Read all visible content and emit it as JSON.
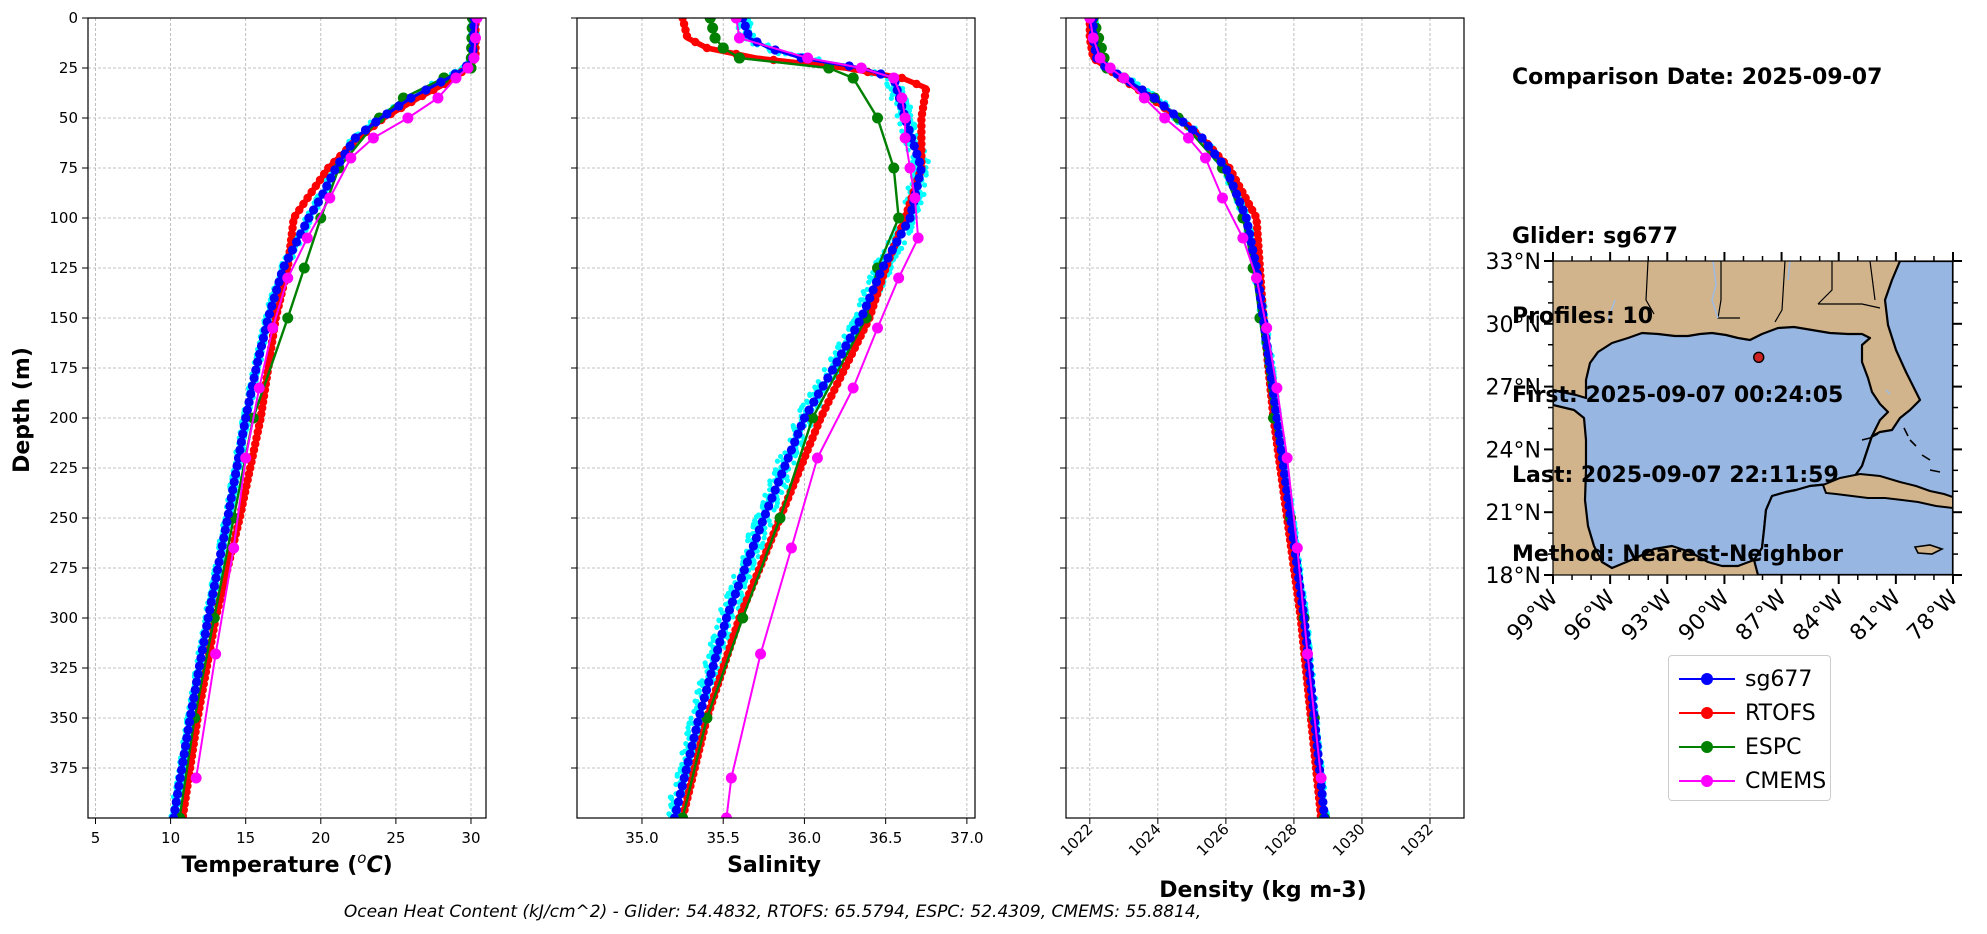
{
  "info": {
    "comparison_date": "Comparison Date: 2025-09-07",
    "glider": "Glider: sg677",
    "profiles": "Profiles: 10",
    "first": "First: 2025-09-07 00:24:05",
    "last": "Last: 2025-09-07 22:11:59",
    "method": "Method: Nearest-Neighbor"
  },
  "footer": "Ocean Heat Content (kJ/cm^2) - Glider: 54.4832,  RTOFS: 65.5794,  ESPC: 52.4309,  CMEMS: 55.8814,",
  "colors": {
    "sg677": "#0000ff",
    "RTOFS": "#ff0000",
    "ESPC": "#008000",
    "CMEMS": "#ff00ff",
    "glider_raw": "#00ffff",
    "land": "#d2b48c",
    "ocean": "#97b6e1",
    "grid": "#b0b0b0"
  },
  "legend": [
    {
      "name": "sg677",
      "color": "#0000ff"
    },
    {
      "name": "RTOFS",
      "color": "#ff0000"
    },
    {
      "name": "ESPC",
      "color": "#008000"
    },
    {
      "name": "CMEMS",
      "color": "#ff00ff"
    }
  ],
  "chart_data": [
    {
      "type": "line",
      "xlabel": "Temperature (°C)",
      "ylabel": "Depth (m)",
      "xlim": [
        4.5,
        31
      ],
      "ylim": [
        400,
        0
      ],
      "xticks": [
        5,
        10,
        15,
        20,
        25,
        30
      ],
      "yticks": [
        0,
        25,
        50,
        75,
        100,
        125,
        150,
        175,
        200,
        225,
        250,
        275,
        300,
        325,
        350,
        375
      ],
      "grid": true,
      "series": [
        {
          "name": "sg677",
          "depth": [
            0,
            10,
            20,
            25,
            30,
            40,
            50,
            60,
            75,
            90,
            100,
            125,
            150,
            175,
            200,
            250,
            300,
            350,
            400
          ],
          "values": [
            30.2,
            30.2,
            30.1,
            29.6,
            28.5,
            26.0,
            24.0,
            22.3,
            21.0,
            20.0,
            19.2,
            17.5,
            16.5,
            15.7,
            15.0,
            13.8,
            12.5,
            11.3,
            10.2
          ]
        },
        {
          "name": "RTOFS",
          "depth": [
            0,
            10,
            20,
            30,
            40,
            50,
            60,
            75,
            100,
            125,
            150,
            200,
            250,
            300,
            350,
            400
          ],
          "values": [
            30.3,
            30.3,
            30.3,
            29.0,
            26.5,
            24.2,
            22.5,
            20.5,
            18.2,
            17.8,
            17.0,
            16.0,
            14.6,
            13.0,
            11.8,
            10.8
          ]
        },
        {
          "name": "ESPC",
          "depth": [
            0,
            25,
            30,
            40,
            50,
            75,
            100,
            125,
            150,
            200,
            250,
            300,
            350,
            400
          ],
          "values": [
            30.1,
            30.0,
            28.2,
            25.5,
            23.9,
            21.2,
            20.0,
            18.9,
            17.8,
            15.5,
            14.2,
            12.9,
            11.6,
            10.6
          ]
        },
        {
          "name": "CMEMS",
          "depth": [
            0,
            10,
            20,
            25,
            30,
            40,
            50,
            60,
            70,
            90,
            110,
            130,
            155,
            185,
            220,
            265,
            318,
            380
          ],
          "values": [
            30.4,
            30.3,
            30.2,
            29.8,
            29.0,
            27.8,
            25.8,
            23.5,
            22.0,
            20.6,
            19.1,
            17.8,
            16.8,
            15.9,
            15.0,
            14.2,
            13.0,
            11.7
          ]
        }
      ]
    },
    {
      "type": "line",
      "xlabel": "Salinity",
      "xlim": [
        34.6,
        37.05
      ],
      "ylim": [
        400,
        0
      ],
      "xticks": [
        35.0,
        35.5,
        36.0,
        36.5,
        37.0
      ],
      "grid": true,
      "series": [
        {
          "name": "sg677",
          "depth": [
            0,
            10,
            15,
            20,
            25,
            30,
            50,
            75,
            100,
            125,
            150,
            175,
            200,
            250,
            300,
            350,
            400
          ],
          "values": [
            35.62,
            35.66,
            35.78,
            35.98,
            36.35,
            36.55,
            36.62,
            36.72,
            36.65,
            36.48,
            36.35,
            36.18,
            36.0,
            35.75,
            35.52,
            35.35,
            35.2
          ]
        },
        {
          "name": "RTOFS",
          "depth": [
            0,
            10,
            15,
            20,
            25,
            30,
            35,
            50,
            75,
            100,
            125,
            150,
            200,
            250,
            300,
            350,
            400
          ],
          "values": [
            35.25,
            35.28,
            35.4,
            35.7,
            36.25,
            36.6,
            36.75,
            36.72,
            36.72,
            36.62,
            36.5,
            36.4,
            36.1,
            35.85,
            35.6,
            35.4,
            35.25
          ]
        },
        {
          "name": "ESPC",
          "depth": [
            0,
            10,
            15,
            20,
            25,
            30,
            50,
            75,
            100,
            125,
            150,
            200,
            250,
            300,
            350,
            400
          ],
          "values": [
            35.42,
            35.45,
            35.5,
            35.6,
            36.15,
            36.3,
            36.45,
            36.55,
            36.58,
            36.45,
            36.38,
            36.05,
            35.85,
            35.62,
            35.4,
            35.25
          ]
        },
        {
          "name": "CMEMS",
          "depth": [
            0,
            10,
            20,
            25,
            30,
            40,
            50,
            60,
            75,
            90,
            110,
            130,
            155,
            185,
            220,
            265,
            318,
            380,
            400
          ],
          "values": [
            35.58,
            35.6,
            36.02,
            36.35,
            36.55,
            36.6,
            36.62,
            36.62,
            36.65,
            36.68,
            36.7,
            36.58,
            36.45,
            36.3,
            36.08,
            35.92,
            35.73,
            35.55,
            35.52
          ]
        }
      ]
    },
    {
      "type": "line",
      "xlabel": "Density (kg m-3)",
      "xlim": [
        1021.3,
        1033.0
      ],
      "ylim": [
        400,
        0
      ],
      "xticks": [
        1022,
        1024,
        1026,
        1028,
        1030,
        1032
      ],
      "grid": true,
      "series": [
        {
          "name": "sg677",
          "depth": [
            0,
            10,
            20,
            25,
            30,
            40,
            50,
            60,
            75,
            100,
            125,
            150,
            200,
            250,
            300,
            350,
            400
          ],
          "values": [
            1022.1,
            1022.1,
            1022.2,
            1022.5,
            1023.0,
            1023.9,
            1024.6,
            1025.3,
            1026.0,
            1026.6,
            1026.9,
            1027.1,
            1027.5,
            1027.9,
            1028.3,
            1028.6,
            1028.9
          ]
        },
        {
          "name": "RTOFS",
          "depth": [
            0,
            10,
            20,
            30,
            40,
            50,
            60,
            75,
            100,
            125,
            150,
            200,
            250,
            300,
            350,
            400
          ],
          "values": [
            1022.0,
            1022.0,
            1022.1,
            1022.9,
            1023.8,
            1024.6,
            1025.3,
            1026.1,
            1026.9,
            1027.0,
            1027.1,
            1027.4,
            1027.8,
            1028.2,
            1028.5,
            1028.8
          ]
        },
        {
          "name": "ESPC",
          "depth": [
            0,
            25,
            30,
            40,
            50,
            75,
            100,
            125,
            150,
            200,
            250,
            300,
            350,
            400
          ],
          "values": [
            1022.1,
            1022.5,
            1023.0,
            1023.9,
            1024.6,
            1025.9,
            1026.5,
            1026.8,
            1027.0,
            1027.4,
            1027.9,
            1028.3,
            1028.6,
            1028.9
          ]
        },
        {
          "name": "CMEMS",
          "depth": [
            0,
            10,
            20,
            25,
            30,
            40,
            50,
            60,
            70,
            90,
            110,
            130,
            155,
            185,
            220,
            265,
            318,
            380
          ],
          "values": [
            1022.0,
            1022.1,
            1022.3,
            1022.6,
            1023.0,
            1023.6,
            1024.2,
            1024.9,
            1025.4,
            1025.9,
            1026.5,
            1026.9,
            1027.2,
            1027.5,
            1027.8,
            1028.1,
            1028.4,
            1028.8
          ]
        }
      ]
    },
    {
      "type": "map",
      "xlim": [
        -99,
        -78
      ],
      "ylim": [
        18,
        33
      ],
      "xticks": [
        "99°W",
        "96°W",
        "93°W",
        "90°W",
        "87°W",
        "84°W",
        "81°W",
        "78°W"
      ],
      "yticks": [
        "33°N",
        "30°N",
        "27°N",
        "24°N",
        "21°N",
        "18°N"
      ],
      "marker": {
        "lon": -88.2,
        "lat": 28.4
      }
    }
  ]
}
